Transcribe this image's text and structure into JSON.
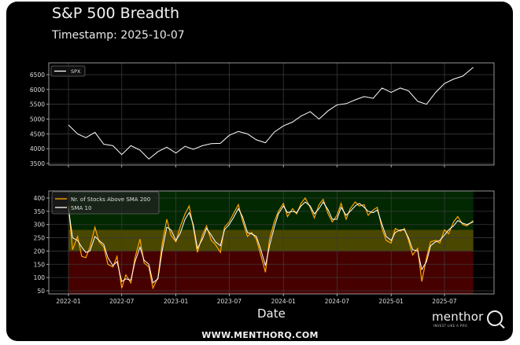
{
  "title": "S&P 500 Breadth",
  "subtitle": "Timestamp: 2025-10-07",
  "footer": "WWW.MENTHORQ.COM",
  "logo": {
    "name": "menthor",
    "tagline": "INVEST LIKE A PRO",
    "mark": "Q"
  },
  "colors": {
    "background": "#000000",
    "spx": "#ffffff",
    "breadth": "#ffa500",
    "sma": "#ffffff",
    "band_green": "#022802",
    "band_yellow": "#4a4700",
    "band_red": "#470000",
    "grid": "#3a3a3a"
  },
  "chart_data": [
    {
      "type": "line",
      "xlabel": "",
      "ylabel": "",
      "ylim": [
        3450,
        6900
      ],
      "yticks": [
        3500,
        4000,
        4500,
        5000,
        5500,
        6000,
        6500
      ],
      "xticks": [
        "2022-01",
        "2022-07",
        "2023-01",
        "2023-07",
        "2024-01",
        "2024-07",
        "2025-01",
        "2025-07"
      ],
      "grid": true,
      "legend": "top-left",
      "series": [
        {
          "name": "SPX",
          "dates": [
            "2022-01-01",
            "2022-02-01",
            "2022-03-01",
            "2022-04-01",
            "2022-05-01",
            "2022-06-01",
            "2022-07-01",
            "2022-08-01",
            "2022-09-01",
            "2022-10-01",
            "2022-11-01",
            "2022-12-01",
            "2023-01-01",
            "2023-02-01",
            "2023-03-01",
            "2023-04-01",
            "2023-05-01",
            "2023-06-01",
            "2023-07-01",
            "2023-08-01",
            "2023-09-01",
            "2023-10-01",
            "2023-11-01",
            "2023-12-01",
            "2024-01-01",
            "2024-02-01",
            "2024-03-01",
            "2024-04-01",
            "2024-05-01",
            "2024-06-01",
            "2024-07-01",
            "2024-08-01",
            "2024-09-01",
            "2024-10-01",
            "2024-11-01",
            "2024-12-01",
            "2025-01-01",
            "2025-02-01",
            "2025-03-01",
            "2025-04-01",
            "2025-05-01",
            "2025-06-01",
            "2025-07-01",
            "2025-08-01",
            "2025-09-01",
            "2025-10-07"
          ],
          "values": [
            4800,
            4500,
            4370,
            4550,
            4150,
            4100,
            3800,
            4100,
            3950,
            3650,
            3900,
            4050,
            3850,
            4080,
            3980,
            4100,
            4170,
            4180,
            4450,
            4580,
            4500,
            4300,
            4200,
            4560,
            4770,
            4900,
            5100,
            5250,
            5000,
            5280,
            5480,
            5520,
            5650,
            5760,
            5700,
            6050,
            5900,
            6050,
            5950,
            5600,
            5500,
            5900,
            6200,
            6350,
            6450,
            6750
          ]
        }
      ]
    },
    {
      "type": "line",
      "xlabel": "Date",
      "ylabel": "",
      "ylim": [
        38,
        425
      ],
      "yticks": [
        50,
        100,
        150,
        200,
        250,
        300,
        350,
        400
      ],
      "xticks": [
        "2022-01",
        "2022-07",
        "2023-01",
        "2023-07",
        "2024-01",
        "2024-07",
        "2025-01",
        "2025-07"
      ],
      "grid": true,
      "legend": "top-left",
      "bands": [
        {
          "from": 280,
          "to": 425,
          "color": "green"
        },
        {
          "from": 200,
          "to": 280,
          "color": "yellow"
        },
        {
          "from": 38,
          "to": 200,
          "color": "red"
        }
      ],
      "dates": [
        "2022-01-01",
        "2022-01-15",
        "2022-02-01",
        "2022-02-15",
        "2022-03-01",
        "2022-03-15",
        "2022-04-01",
        "2022-04-15",
        "2022-05-01",
        "2022-05-15",
        "2022-06-01",
        "2022-06-15",
        "2022-07-01",
        "2022-07-15",
        "2022-08-01",
        "2022-08-15",
        "2022-09-01",
        "2022-09-15",
        "2022-10-01",
        "2022-10-15",
        "2022-11-01",
        "2022-11-15",
        "2022-12-01",
        "2022-12-15",
        "2023-01-01",
        "2023-01-15",
        "2023-02-01",
        "2023-02-15",
        "2023-03-01",
        "2023-03-15",
        "2023-04-01",
        "2023-04-15",
        "2023-05-01",
        "2023-05-15",
        "2023-06-01",
        "2023-06-15",
        "2023-07-01",
        "2023-07-15",
        "2023-08-01",
        "2023-08-15",
        "2023-09-01",
        "2023-09-15",
        "2023-10-01",
        "2023-10-15",
        "2023-11-01",
        "2023-11-15",
        "2023-12-01",
        "2023-12-15",
        "2024-01-01",
        "2024-01-15",
        "2024-02-01",
        "2024-02-15",
        "2024-03-01",
        "2024-03-15",
        "2024-04-01",
        "2024-04-15",
        "2024-05-01",
        "2024-05-15",
        "2024-06-01",
        "2024-06-15",
        "2024-07-01",
        "2024-07-15",
        "2024-08-01",
        "2024-08-15",
        "2024-09-01",
        "2024-09-15",
        "2024-10-01",
        "2024-10-15",
        "2024-11-01",
        "2024-11-15",
        "2024-12-01",
        "2024-12-15",
        "2025-01-01",
        "2025-01-15",
        "2025-02-01",
        "2025-02-15",
        "2025-03-01",
        "2025-03-15",
        "2025-04-01",
        "2025-04-15",
        "2025-05-01",
        "2025-05-15",
        "2025-06-01",
        "2025-06-15",
        "2025-07-01",
        "2025-07-15",
        "2025-08-01",
        "2025-08-15",
        "2025-09-01",
        "2025-09-15",
        "2025-10-07"
      ],
      "series": [
        {
          "name": "Nr. of Stocks Above SMA 200",
          "values": [
            370,
            205,
            255,
            180,
            175,
            215,
            290,
            235,
            215,
            150,
            140,
            180,
            60,
            110,
            80,
            175,
            245,
            155,
            140,
            60,
            100,
            225,
            320,
            260,
            235,
            290,
            340,
            370,
            290,
            195,
            260,
            295,
            240,
            225,
            195,
            290,
            310,
            340,
            375,
            315,
            255,
            270,
            245,
            190,
            120,
            245,
            310,
            350,
            380,
            330,
            360,
            340,
            380,
            400,
            365,
            325,
            375,
            395,
            340,
            310,
            335,
            380,
            320,
            360,
            385,
            370,
            375,
            335,
            355,
            365,
            285,
            240,
            230,
            285,
            275,
            285,
            240,
            185,
            210,
            85,
            175,
            235,
            240,
            230,
            280,
            265,
            310,
            330,
            300,
            295,
            315
          ]
        },
        {
          "name": "SMA 10",
          "values": [
            360,
            250,
            240,
            215,
            195,
            200,
            255,
            240,
            225,
            175,
            145,
            160,
            85,
            95,
            90,
            160,
            215,
            165,
            150,
            80,
            95,
            200,
            290,
            280,
            240,
            265,
            320,
            345,
            300,
            210,
            245,
            285,
            260,
            235,
            220,
            280,
            300,
            325,
            360,
            330,
            270,
            265,
            255,
            210,
            145,
            220,
            290,
            340,
            370,
            345,
            350,
            345,
            370,
            385,
            370,
            340,
            360,
            385,
            355,
            320,
            320,
            365,
            335,
            350,
            370,
            380,
            365,
            350,
            345,
            355,
            300,
            255,
            240,
            270,
            280,
            280,
            250,
            205,
            200,
            130,
            160,
            220,
            235,
            240,
            260,
            280,
            295,
            315,
            305,
            300,
            310
          ]
        }
      ]
    }
  ]
}
